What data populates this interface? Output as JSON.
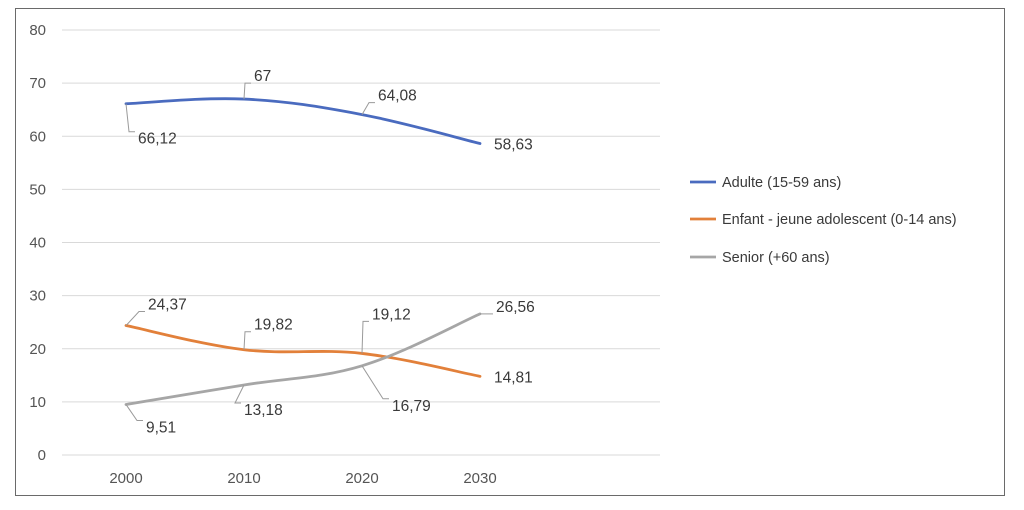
{
  "chart_data": {
    "type": "line",
    "x": [
      "2000",
      "2010",
      "2020",
      "2030"
    ],
    "ylim": [
      0,
      80
    ],
    "yticks": [
      0,
      10,
      20,
      30,
      40,
      50,
      60,
      70,
      80
    ],
    "grid": true,
    "legend_position": "right",
    "series": [
      {
        "name": "Adulte (15-59 ans)",
        "values": [
          66.12,
          67,
          64.08,
          58.63
        ],
        "labels": [
          "66,12",
          "67",
          "64,08",
          "58,63"
        ],
        "color": "#4a6bbf"
      },
      {
        "name": "Enfant - jeune adolescent (0-14 ans)",
        "values": [
          24.37,
          19.82,
          19.12,
          14.81
        ],
        "labels": [
          "24,37",
          "19,82",
          "19,12",
          "14,81"
        ],
        "color": "#e2803a"
      },
      {
        "name": "Senior (+60 ans)",
        "values": [
          9.51,
          13.18,
          16.79,
          26.56
        ],
        "labels": [
          "9,51",
          "13,18",
          "16,79",
          "26,56"
        ],
        "color": "#a6a6a6"
      }
    ]
  }
}
